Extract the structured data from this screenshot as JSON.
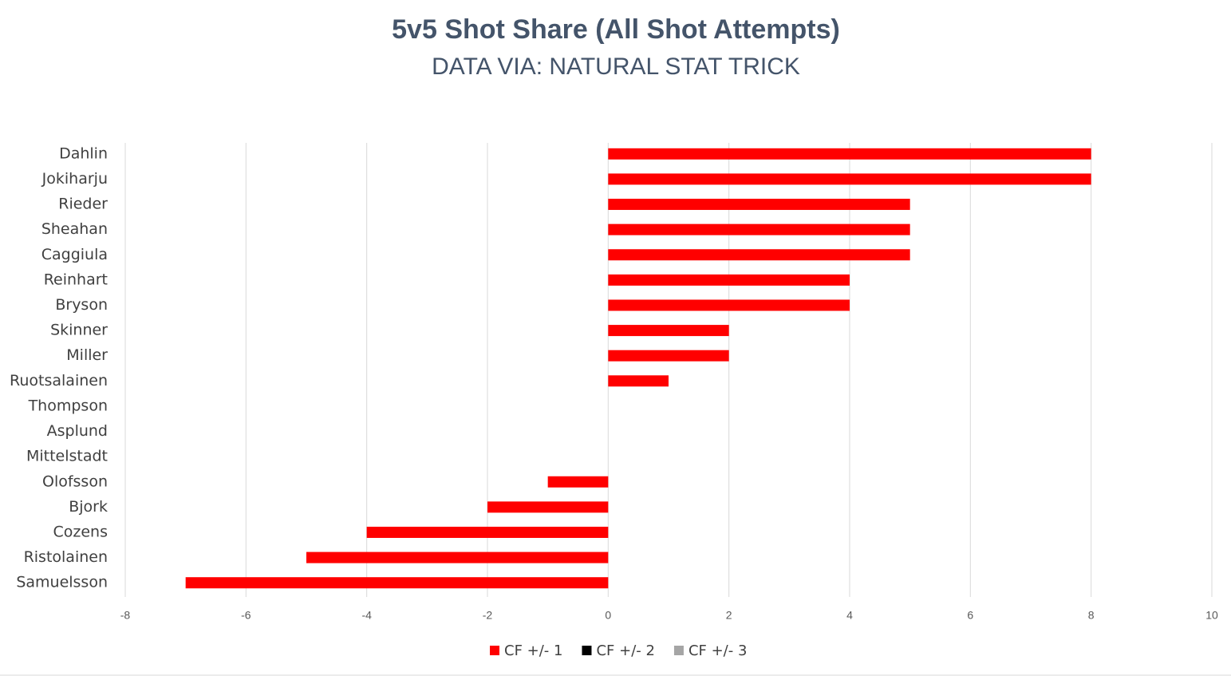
{
  "chart_data": {
    "type": "barh",
    "title": "5v5 Shot Share (All Shot Attempts)",
    "subtitle": "DATA VIA: NATURAL STAT TRICK",
    "categories": [
      "Dahlin",
      "Jokiharju",
      "Rieder",
      "Sheahan",
      "Caggiula",
      "Reinhart",
      "Bryson",
      "Skinner",
      "Miller",
      "Ruotsalainen",
      "Thompson",
      "Asplund",
      "Mittelstadt",
      "Olofsson",
      "Bjork",
      "Cozens",
      "Ristolainen",
      "Samuelsson"
    ],
    "series": [
      {
        "name": "CF +/- 1",
        "color": "#ff0000",
        "values": [
          8,
          8,
          5,
          5,
          5,
          4,
          4,
          2,
          2,
          1,
          0,
          0,
          0,
          -1,
          -2,
          -4,
          -5,
          -7
        ]
      },
      {
        "name": "CF +/- 2",
        "color": "#000000",
        "values": [
          0,
          0,
          0,
          0,
          0,
          0,
          0,
          0,
          0,
          0,
          0,
          0,
          0,
          0,
          0,
          0,
          0,
          0
        ]
      },
      {
        "name": "CF +/- 3",
        "color": "#a5a5a5",
        "values": [
          0,
          0,
          0,
          0,
          0,
          0,
          0,
          0,
          0,
          0,
          0,
          0,
          0,
          0,
          0,
          0,
          0,
          0
        ]
      }
    ],
    "xlim": [
      -8,
      10
    ],
    "xticks": [
      -8,
      -6,
      -4,
      -2,
      0,
      2,
      4,
      6,
      8,
      10
    ],
    "grid": true,
    "legend": "bottom"
  }
}
